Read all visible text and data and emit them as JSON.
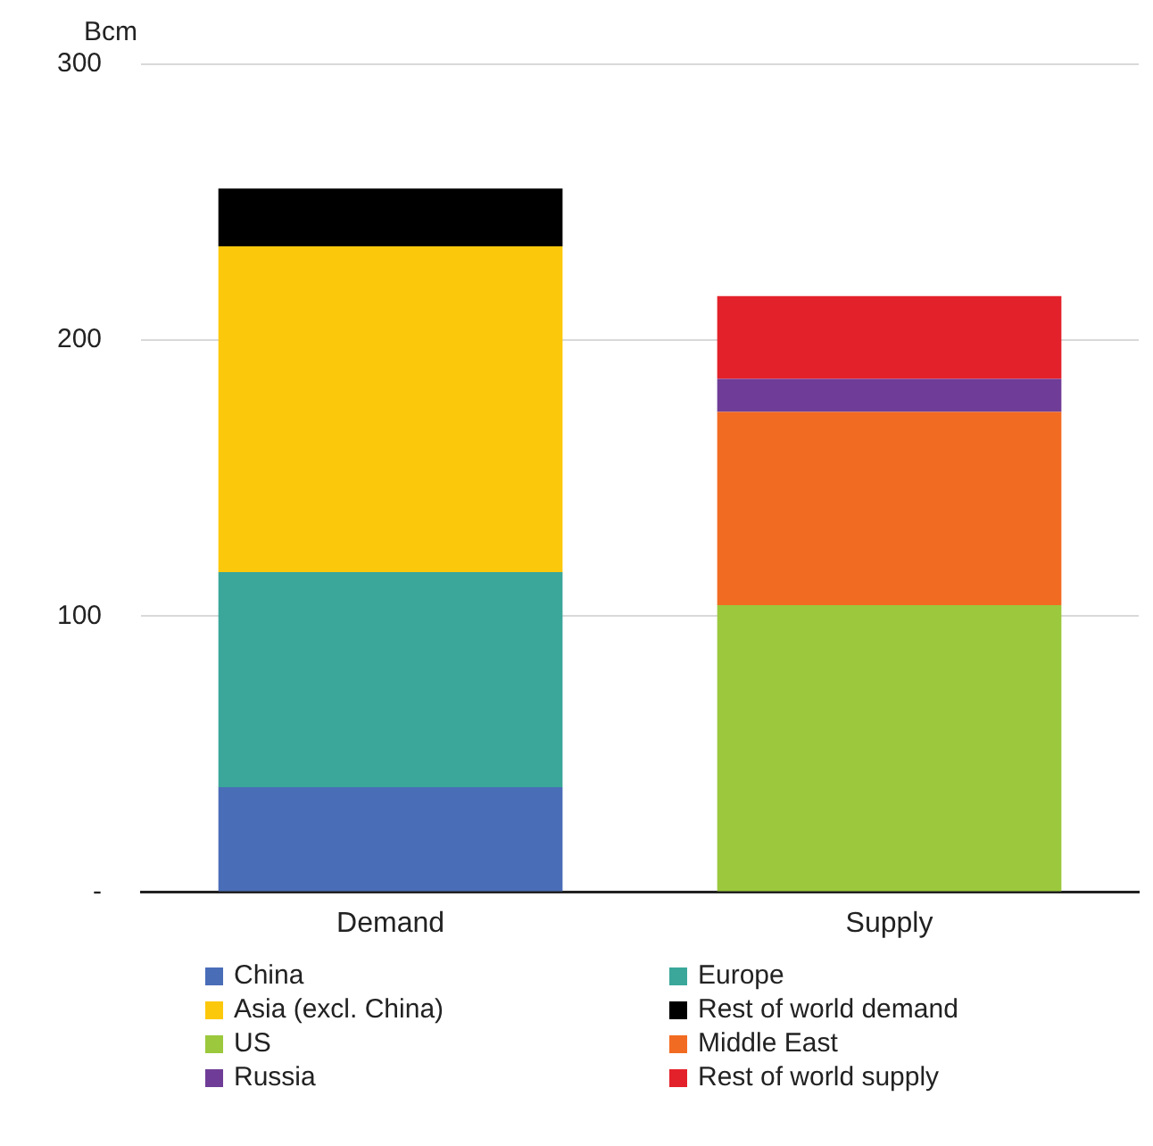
{
  "chart_data": {
    "type": "bar",
    "stacked": true,
    "ylabel": "Bcm",
    "categories": [
      "Demand",
      "Supply"
    ],
    "series": [
      {
        "name": "China",
        "color": "#4a6db8",
        "values": [
          38,
          null
        ]
      },
      {
        "name": "Europe",
        "color": "#3aa79a",
        "values": [
          78,
          null
        ]
      },
      {
        "name": "Asia (excl. China)",
        "color": "#fcc80c",
        "values": [
          118,
          null
        ]
      },
      {
        "name": "Rest of world demand",
        "color": "#000000",
        "values": [
          21,
          null
        ]
      },
      {
        "name": "US",
        "color": "#9bc83c",
        "values": [
          null,
          104
        ]
      },
      {
        "name": "Middle East",
        "color": "#f26b22",
        "values": [
          null,
          70
        ]
      },
      {
        "name": "Russia",
        "color": "#6f3d97",
        "values": [
          null,
          12
        ]
      },
      {
        "name": "Rest of world supply",
        "color": "#e3212a",
        "values": [
          null,
          30
        ]
      }
    ],
    "ylim": [
      0,
      300
    ],
    "yticks": [
      {
        "value": 0,
        "label": "-"
      },
      100,
      200,
      300
    ],
    "grid": "y",
    "legend": "bottom"
  }
}
